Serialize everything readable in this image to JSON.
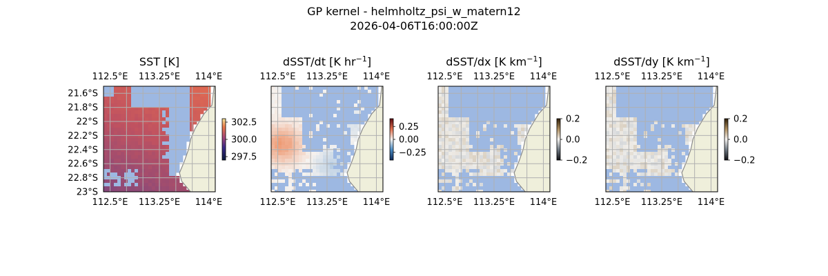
{
  "figure": {
    "title": "GP kernel - helmholtz_psi_w_matern12",
    "subtitle": "2026-04-06T16:00:00Z"
  },
  "colors": {
    "nan_fill": "#9db8e2",
    "land": "#efefdb",
    "coast": "#8a8a8a",
    "grid": "#b0b0b0"
  },
  "chart_data": [
    {
      "type": "heatmap",
      "title": "SST [K]",
      "title_base": "SST [K]",
      "title_sup": "",
      "title_tail": "",
      "colormap": "thermal",
      "xlim": [
        112.4,
        114.1
      ],
      "ylim": [
        -23.0,
        -21.5
      ],
      "x_ticks": [
        "112.5°E",
        "113.25°E",
        "114°E"
      ],
      "x_tick_values": [
        112.5,
        113.25,
        114.0
      ],
      "y_ticks": [
        "21.6°S",
        "21.8°S",
        "22°S",
        "22.2°S",
        "22.4°S",
        "22.6°S",
        "22.8°S",
        "23°S"
      ],
      "y_tick_values": [
        -21.6,
        -21.8,
        -22.0,
        -22.2,
        -22.4,
        -22.6,
        -22.8,
        -23.0
      ],
      "show_y_ticks": true,
      "colorbar": {
        "range": [
          297.0,
          303.0
        ],
        "ticks": [
          "302.5",
          "300.0",
          "297.5"
        ],
        "tick_values": [
          302.5,
          300.0,
          297.5
        ]
      },
      "grid": true
    },
    {
      "type": "heatmap",
      "title": "dSST/dt [K hr−1]",
      "title_base": "dSST/dt [K hr",
      "title_sup": "−1",
      "title_tail": "]",
      "colormap": "diverging-red-blue",
      "xlim": [
        112.4,
        114.1
      ],
      "ylim": [
        -23.0,
        -21.5
      ],
      "x_ticks": [
        "112.5°E",
        "113.25°E",
        "114°E"
      ],
      "x_tick_values": [
        112.5,
        113.25,
        114.0
      ],
      "y_ticks": [],
      "show_y_ticks": false,
      "colorbar": {
        "range": [
          -0.4,
          0.4
        ],
        "ticks": [
          "0.25",
          "0.00",
          "−0.25"
        ],
        "tick_values": [
          0.25,
          0.0,
          -0.25
        ]
      },
      "grid": true
    },
    {
      "type": "heatmap",
      "title": "dSST/dx [K km−1]",
      "title_base": "dSST/dx [K km",
      "title_sup": "−1",
      "title_tail": "]",
      "colormap": "diverging-brown-gray",
      "xlim": [
        112.4,
        114.1
      ],
      "ylim": [
        -23.0,
        -21.5
      ],
      "x_ticks": [
        "112.5°E",
        "113.25°E",
        "114°E"
      ],
      "x_tick_values": [
        112.5,
        113.25,
        114.0
      ],
      "y_ticks": [],
      "show_y_ticks": false,
      "colorbar": {
        "range": [
          -0.2,
          0.2
        ],
        "ticks": [
          "0.2",
          "0.0",
          "−0.2"
        ],
        "tick_values": [
          0.2,
          0.0,
          -0.2
        ]
      },
      "grid": true
    },
    {
      "type": "heatmap",
      "title": "dSST/dy [K km−1]",
      "title_base": "dSST/dy [K km",
      "title_sup": "−1",
      "title_tail": "]",
      "colormap": "diverging-brown-gray",
      "xlim": [
        112.4,
        114.1
      ],
      "ylim": [
        -23.0,
        -21.5
      ],
      "x_ticks": [
        "112.5°E",
        "113.25°E",
        "114°E"
      ],
      "x_tick_values": [
        112.5,
        113.25,
        114.0
      ],
      "y_ticks": [],
      "show_y_ticks": false,
      "colorbar": {
        "range": [
          -0.2,
          0.2
        ],
        "ticks": [
          "0.2",
          "0.0",
          "−0.2"
        ],
        "tick_values": [
          0.2,
          0.0,
          -0.2
        ]
      },
      "grid": true
    }
  ]
}
